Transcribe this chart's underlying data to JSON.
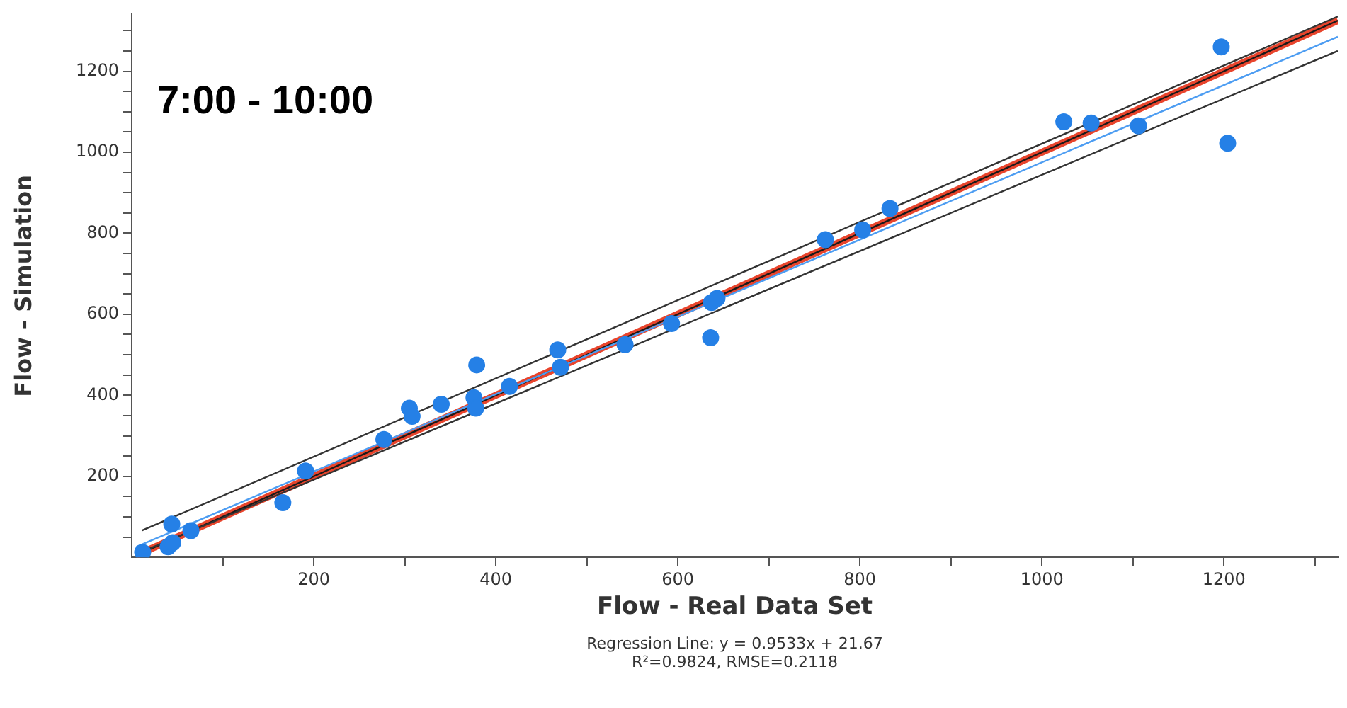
{
  "chart_data": {
    "type": "scatter",
    "title": "7:00 - 10:00",
    "xlabel": "Flow - Real Data Set",
    "ylabel": "Flow - Simulation",
    "annotations": [
      "Regression Line: y = 0.9533x + 21.67",
      "R²=0.9824, RMSE=0.2118"
    ],
    "xlim": [
      0,
      1325
    ],
    "ylim": [
      0,
      1340
    ],
    "xticks": [
      {
        "value": 100,
        "label": null
      },
      200,
      {
        "value": 300,
        "label": null
      },
      400,
      {
        "value": 500,
        "label": null
      },
      600,
      {
        "value": 700,
        "label": null
      },
      800,
      {
        "value": 900,
        "label": null
      },
      1000,
      {
        "value": 1100,
        "label": null
      },
      1200,
      {
        "value": 1300,
        "label": null
      }
    ],
    "yticks": [
      {
        "value": 50,
        "label": null
      },
      {
        "value": 100,
        "label": null
      },
      {
        "value": 150,
        "label": null
      },
      200,
      {
        "value": 250,
        "label": null
      },
      {
        "value": 300,
        "label": null
      },
      {
        "value": 350,
        "label": null
      },
      400,
      {
        "value": 450,
        "label": null
      },
      {
        "value": 500,
        "label": null
      },
      {
        "value": 550,
        "label": null
      },
      600,
      {
        "value": 650,
        "label": null
      },
      {
        "value": 700,
        "label": null
      },
      {
        "value": 750,
        "label": null
      },
      800,
      {
        "value": 850,
        "label": null
      },
      {
        "value": 900,
        "label": null
      },
      {
        "value": 950,
        "label": null
      },
      1000,
      {
        "value": 1050,
        "label": null
      },
      {
        "value": 1100,
        "label": null
      },
      {
        "value": 1150,
        "label": null
      },
      1200,
      {
        "value": 1250,
        "label": null
      },
      {
        "value": 1300,
        "label": null
      }
    ],
    "grid": false,
    "legend": false,
    "series": [
      {
        "marker": "circle",
        "color": "#2580e6",
        "x": [
          12,
          44,
          40,
          45,
          65,
          166,
          191,
          277,
          305,
          308,
          340,
          376,
          378,
          379,
          415,
          468,
          471,
          542,
          593,
          636,
          637,
          643,
          762,
          803,
          833,
          1024,
          1054,
          1106,
          1197,
          1204
        ],
        "values": [
          12,
          82,
          26,
          36,
          66,
          135,
          213,
          291,
          368,
          348,
          378,
          394,
          368,
          475,
          422,
          512,
          469,
          525,
          577,
          542,
          629,
          639,
          784,
          808,
          861,
          1075,
          1072,
          1065,
          1260,
          1022
        ]
      },
      {
        "type": "line",
        "marker": "none",
        "color": "#e8442c",
        "x": [
          5,
          1325
        ],
        "values": [
          5,
          1325
        ]
      },
      {
        "type": "line",
        "marker": "none",
        "color": "#1a1a1a",
        "x": [
          5,
          1325
        ],
        "values": [
          5,
          1325
        ]
      },
      {
        "type": "line",
        "marker": "none",
        "color": "#4d9df2",
        "x": [
          5,
          1325
        ],
        "values": [
          26,
          1285
        ]
      },
      {
        "type": "line",
        "marker": "none",
        "color": "#333333",
        "x": [
          11,
          1325
        ],
        "values": [
          66,
          1335
        ]
      },
      {
        "type": "line",
        "marker": "none",
        "color": "#333333",
        "x": [
          6,
          1325
        ],
        "values": [
          9,
          1250
        ]
      }
    ]
  }
}
